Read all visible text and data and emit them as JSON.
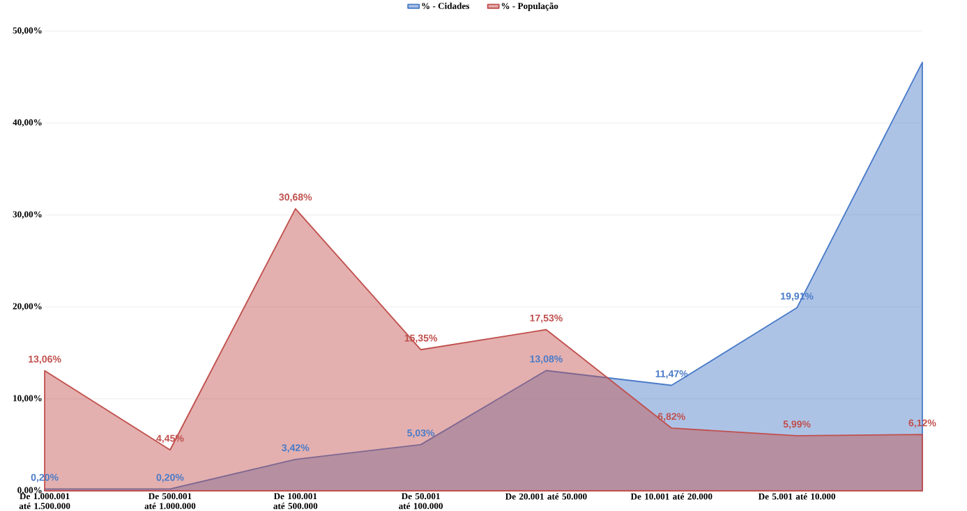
{
  "chart_data": {
    "type": "area",
    "categories": [
      "De 1.000.001 até 1.500.000",
      "De 500.001 até 1.000.000",
      "De 100.001 até 500.000",
      "De 50.001 até 100.000",
      "De 20.001 até 50.000",
      "De 10.001 até 20.000",
      "De 5.001 até 10.000",
      null
    ],
    "series": [
      {
        "name": "% - Cidades",
        "color": "#4a7bc8",
        "values": [
          0.2,
          0.2,
          3.42,
          5.03,
          13.08,
          11.47,
          19.91,
          46.6
        ],
        "value_labels": [
          "0,20%",
          "0,20%",
          "3,42%",
          "5,03%",
          "13,08%",
          "11,47%",
          "19,91%",
          null
        ]
      },
      {
        "name": "% - População",
        "color": "#c0504d",
        "values": [
          13.06,
          4.45,
          30.68,
          15.35,
          17.53,
          6.82,
          5.99,
          6.12
        ],
        "value_labels": [
          "13,06%",
          "4,45%",
          "30,68%",
          "15,35%",
          "17,53%",
          "6,82%",
          "5,99%",
          "6,12%"
        ]
      }
    ],
    "ylim": [
      0,
      50
    ],
    "yticks": [
      {
        "value": 0,
        "label": "0,00%"
      },
      {
        "value": 10,
        "label": "10,00%"
      },
      {
        "value": 20,
        "label": "20,00%"
      },
      {
        "value": 30,
        "label": "30,00%"
      },
      {
        "value": 40,
        "label": "40,00%"
      },
      {
        "value": 50,
        "label": "50,00%"
      }
    ],
    "grid": "y",
    "legend": "top"
  }
}
